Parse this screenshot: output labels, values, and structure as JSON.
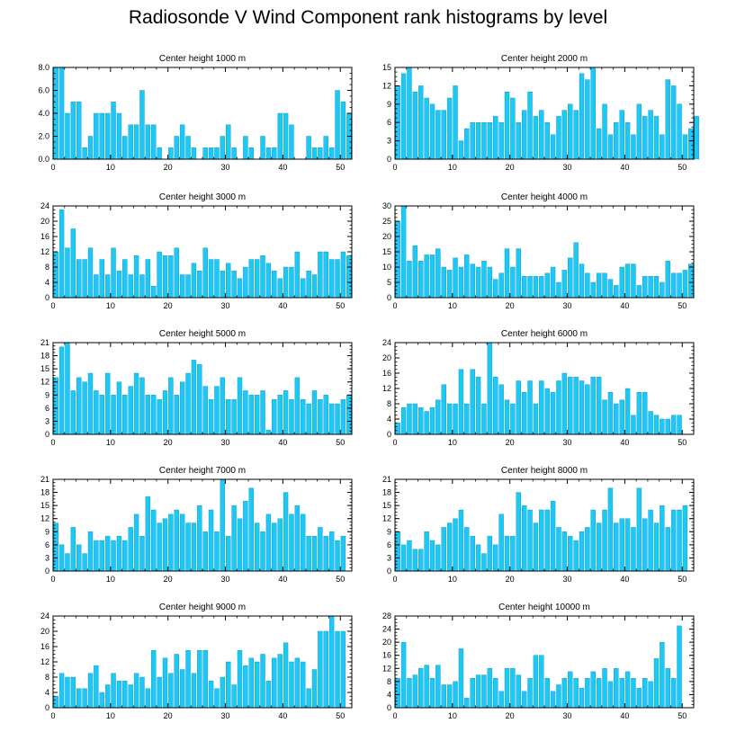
{
  "title": "Radiosonde V Wind Component rank histograms by level",
  "colors": {
    "bar": "#1ec8f5",
    "bar_edge": "#0090c8",
    "axis": "#000000"
  },
  "chart_data": [
    {
      "type": "bar",
      "title": "Center height 1000 m",
      "xlim": [
        0,
        52
      ],
      "xticks": [
        0,
        10,
        20,
        30,
        40,
        50
      ],
      "ylim": [
        0,
        8
      ],
      "yticks": [
        0,
        2,
        4,
        6,
        8
      ],
      "ytick_labels": [
        "0.0",
        "2.0",
        "4.0",
        "6.0",
        "8.0"
      ],
      "values": [
        8,
        8,
        4,
        5,
        5,
        1,
        2,
        4,
        4,
        4,
        5,
        4,
        2,
        3,
        3,
        6,
        3,
        3,
        1,
        0,
        1,
        2,
        3,
        2,
        1,
        0,
        1,
        1,
        1,
        2,
        3,
        1,
        0,
        2,
        1,
        0,
        2,
        1,
        1,
        4,
        4,
        3,
        0,
        0,
        2,
        1,
        1,
        2,
        1,
        6,
        5,
        4
      ]
    },
    {
      "type": "bar",
      "title": "Center height 2000 m",
      "xlim": [
        0,
        52
      ],
      "xticks": [
        0,
        10,
        20,
        30,
        40,
        50
      ],
      "ylim": [
        0,
        15
      ],
      "yticks": [
        0,
        3,
        6,
        9,
        12,
        15
      ],
      "ytick_labels": [
        "0",
        "3",
        "6",
        "9",
        "12",
        "15"
      ],
      "values": [
        12,
        14,
        15,
        11,
        12,
        10,
        9,
        8,
        8,
        10,
        12,
        3,
        5,
        6,
        6,
        6,
        6,
        7,
        6,
        11,
        10,
        6,
        8,
        11,
        7,
        8,
        6,
        4,
        7,
        8,
        9,
        8,
        14,
        13,
        15,
        5,
        9,
        4,
        6,
        8,
        6,
        4,
        9,
        7,
        8,
        7,
        4,
        13,
        12,
        9,
        4,
        5,
        7
      ]
    },
    {
      "type": "bar",
      "title": "Center height 3000 m",
      "xlim": [
        0,
        52
      ],
      "xticks": [
        0,
        10,
        20,
        30,
        40,
        50
      ],
      "ylim": [
        0,
        24
      ],
      "yticks": [
        0,
        4,
        8,
        12,
        16,
        20,
        24
      ],
      "ytick_labels": [
        "0",
        "4",
        "8",
        "12",
        "16",
        "20",
        "24"
      ],
      "values": [
        12,
        23,
        13,
        18,
        10,
        10,
        13,
        6,
        10,
        6,
        13,
        7,
        10,
        6,
        11,
        6,
        10,
        3,
        12,
        11,
        11,
        13,
        6,
        6,
        9,
        7,
        13,
        10,
        10,
        7,
        9,
        7,
        5,
        8,
        10,
        10,
        11,
        9,
        7,
        5,
        8,
        8,
        12,
        5,
        7,
        6,
        12,
        12,
        10,
        10,
        12,
        11
      ]
    },
    {
      "type": "bar",
      "title": "Center height 4000 m",
      "xlim": [
        0,
        52
      ],
      "xticks": [
        0,
        10,
        20,
        30,
        40,
        50
      ],
      "ylim": [
        0,
        30
      ],
      "yticks": [
        0,
        5,
        10,
        15,
        20,
        25,
        30
      ],
      "ytick_labels": [
        "0",
        "5",
        "10",
        "15",
        "20",
        "25",
        "30"
      ],
      "values": [
        25,
        30,
        12,
        17,
        12,
        14,
        14,
        16,
        10,
        9,
        13,
        10,
        14,
        11,
        10,
        12,
        10,
        6,
        8,
        16,
        10,
        16,
        7,
        7,
        7,
        7,
        8,
        10,
        5,
        9,
        13,
        18,
        11,
        8,
        5,
        8,
        8,
        6,
        4,
        10,
        11,
        11,
        4,
        7,
        7,
        7,
        5,
        12,
        8,
        8,
        9,
        11
      ]
    },
    {
      "type": "bar",
      "title": "Center height 5000 m",
      "xlim": [
        0,
        52
      ],
      "xticks": [
        0,
        10,
        20,
        30,
        40,
        50
      ],
      "ylim": [
        0,
        21
      ],
      "yticks": [
        0,
        3,
        6,
        9,
        12,
        15,
        18,
        21
      ],
      "ytick_labels": [
        "0",
        "3",
        "6",
        "9",
        "12",
        "15",
        "18",
        "21"
      ],
      "values": [
        13,
        20,
        21,
        10,
        13,
        12,
        14,
        10,
        9,
        14,
        9,
        12,
        9,
        11,
        14,
        13,
        9,
        9,
        8,
        10,
        13,
        9,
        12,
        14,
        17,
        16,
        11,
        8,
        11,
        13,
        8,
        8,
        13,
        10,
        9,
        9,
        10,
        1,
        8,
        9,
        10,
        8,
        13,
        8,
        7,
        10,
        8,
        9,
        7,
        7,
        8,
        9
      ]
    },
    {
      "type": "bar",
      "title": "Center height 6000 m",
      "xlim": [
        0,
        52
      ],
      "xticks": [
        0,
        10,
        20,
        30,
        40,
        50
      ],
      "ylim": [
        0,
        24
      ],
      "yticks": [
        0,
        4,
        8,
        12,
        16,
        20,
        24
      ],
      "ytick_labels": [
        "0",
        "4",
        "8",
        "12",
        "16",
        "20",
        "24"
      ],
      "values": [
        3,
        7,
        8,
        8,
        7,
        6,
        7,
        9,
        13,
        8,
        8,
        17,
        8,
        17,
        15,
        8,
        24,
        15,
        13,
        9,
        8,
        14,
        11,
        14,
        8,
        14,
        12,
        11,
        14,
        16,
        15,
        15,
        14,
        13,
        15,
        15,
        9,
        11,
        8,
        9,
        12,
        5,
        11,
        11,
        6,
        5,
        4,
        4,
        5,
        5
      ]
    },
    {
      "type": "bar",
      "title": "Center height 7000 m",
      "xlim": [
        0,
        52
      ],
      "xticks": [
        0,
        10,
        20,
        30,
        40,
        50
      ],
      "ylim": [
        0,
        21
      ],
      "yticks": [
        0,
        3,
        6,
        9,
        12,
        15,
        18,
        21
      ],
      "ytick_labels": [
        "0",
        "3",
        "6",
        "9",
        "12",
        "15",
        "18",
        "21"
      ],
      "values": [
        11,
        6,
        4,
        10,
        6,
        4,
        9,
        7,
        7,
        8,
        7,
        8,
        7,
        10,
        13,
        8,
        17,
        14,
        11,
        12,
        13,
        14,
        13,
        11,
        11,
        15,
        9,
        14,
        9,
        21,
        8,
        15,
        12,
        16,
        19,
        11,
        9,
        13,
        11,
        12,
        18,
        13,
        15,
        13,
        8,
        8,
        10,
        8,
        9,
        7,
        8
      ]
    },
    {
      "type": "bar",
      "title": "Center height 8000 m",
      "xlim": [
        0,
        52
      ],
      "xticks": [
        0,
        10,
        20,
        30,
        40,
        50
      ],
      "ylim": [
        0,
        21
      ],
      "yticks": [
        0,
        3,
        6,
        9,
        12,
        15,
        18,
        21
      ],
      "ytick_labels": [
        "0",
        "3",
        "6",
        "9",
        "12",
        "15",
        "18",
        "21"
      ],
      "values": [
        9,
        6,
        7,
        5,
        5,
        9,
        7,
        6,
        10,
        11,
        12,
        14,
        10,
        8,
        6,
        4,
        8,
        6,
        13,
        8,
        8,
        18,
        15,
        14,
        11,
        14,
        14,
        16,
        10,
        9,
        8,
        7,
        9,
        10,
        14,
        11,
        14,
        19,
        11,
        12,
        12,
        10,
        19,
        12,
        14,
        11,
        15,
        10,
        14,
        14,
        15
      ]
    },
    {
      "type": "bar",
      "title": "Center height 9000 m",
      "xlim": [
        0,
        52
      ],
      "xticks": [
        0,
        10,
        20,
        30,
        40,
        50
      ],
      "ylim": [
        0,
        24
      ],
      "yticks": [
        0,
        4,
        8,
        12,
        16,
        20,
        24
      ],
      "ytick_labels": [
        "0",
        "4",
        "8",
        "12",
        "16",
        "20",
        "24"
      ],
      "values": [
        3,
        9,
        8,
        8,
        5,
        5,
        9,
        11,
        4,
        6,
        9,
        7,
        7,
        6,
        9,
        8,
        5,
        15,
        8,
        13,
        9,
        14,
        10,
        15,
        9,
        15,
        15,
        7,
        5,
        8,
        12,
        6,
        15,
        11,
        13,
        12,
        14,
        7,
        13,
        14,
        17,
        12,
        13,
        12,
        5,
        10,
        20,
        20,
        24,
        20,
        20
      ]
    },
    {
      "type": "bar",
      "title": "Center height 10000 m",
      "xlim": [
        0,
        52
      ],
      "xticks": [
        0,
        10,
        20,
        30,
        40,
        50
      ],
      "ylim": [
        0,
        28
      ],
      "yticks": [
        0,
        4,
        8,
        12,
        16,
        20,
        24,
        28
      ],
      "ytick_labels": [
        "0",
        "4",
        "8",
        "12",
        "16",
        "20",
        "24",
        "28"
      ],
      "values": [
        9,
        20,
        9,
        10,
        12,
        13,
        9,
        13,
        7,
        7,
        8,
        18,
        3,
        9,
        10,
        10,
        12,
        9,
        5,
        12,
        12,
        10,
        5,
        9,
        16,
        16,
        9,
        5,
        7,
        9,
        11,
        9,
        6,
        9,
        11,
        9,
        12,
        8,
        12,
        9,
        11,
        9,
        6,
        9,
        8,
        15,
        20,
        12,
        9,
        25
      ]
    }
  ]
}
